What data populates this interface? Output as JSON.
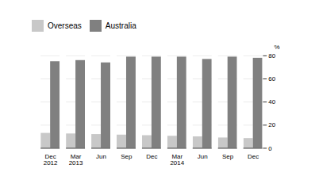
{
  "chart_data": {
    "type": "bar",
    "categories": [
      "Dec\n2012",
      "Mar\n2013",
      "Jun",
      "Sep",
      "Dec",
      "Mar\n2014",
      "Jun",
      "Sep",
      "Dec"
    ],
    "series": [
      {
        "name": "Overseas",
        "color": "#c8c8c8",
        "values": [
          13,
          12.5,
          12,
          11.5,
          11,
          10.5,
          10,
          9,
          8.5
        ]
      },
      {
        "name": "Australia",
        "color": "#808080",
        "values": [
          75,
          76,
          74,
          79,
          79,
          79,
          77,
          79,
          78
        ]
      }
    ],
    "ylabel": "%",
    "ylim": [
      0,
      80
    ],
    "yticks": [
      0,
      20,
      40,
      60,
      80
    ],
    "grid": true,
    "legend": "upper left"
  }
}
